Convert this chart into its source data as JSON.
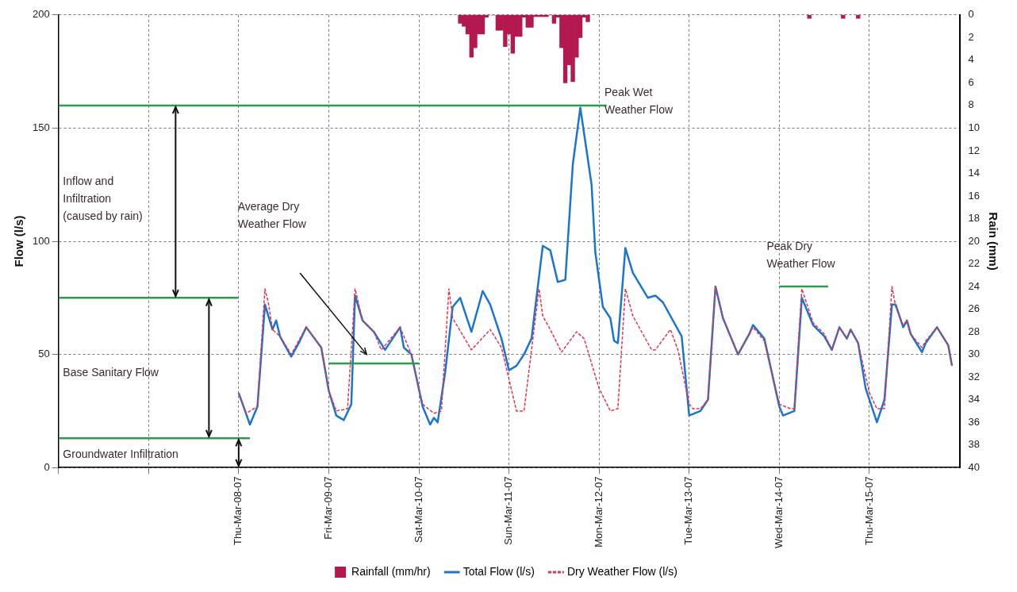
{
  "chart_data": {
    "type": "line",
    "ylabel": "Flow (l/s)",
    "y2label": "Rain (mm)",
    "xlim": [
      "--03-06",
      "--03-16"
    ],
    "xticks": [
      {
        "value": "--03-06",
        "label": null
      },
      {
        "value": "--03-07",
        "label": null
      },
      {
        "value": "--03-08",
        "label": "Thu-Mar-08-07"
      },
      {
        "value": "--03-09",
        "label": "Fri-Mar-09-07"
      },
      {
        "value": "--03-10",
        "label": "Sat-Mar-10-07"
      },
      {
        "value": "--03-11",
        "label": "Sun-Mar-11-07"
      },
      {
        "value": "--03-12",
        "label": "Mon-Mar-12-07"
      },
      {
        "value": "--03-13",
        "label": "Tue-Mar-13-07"
      },
      {
        "value": "--03-14",
        "label": "Wed-Mar-14-07"
      },
      {
        "value": "--03-15",
        "label": "Thu-Mar-15-07"
      }
    ],
    "ylim": [
      0,
      200
    ],
    "yticks": [
      0,
      50,
      100,
      150,
      200
    ],
    "y2lim": [
      40,
      0
    ],
    "y2ticks": [
      0,
      2,
      4,
      6,
      8,
      10,
      12,
      14,
      16,
      18,
      20,
      22,
      24,
      26,
      28,
      30,
      32,
      34,
      36,
      38,
      40
    ],
    "grid": true,
    "legend": "bottom",
    "marker": "none",
    "series": [
      {
        "name": "Rainfall (mm/hr)",
        "type": "bar",
        "axis": "y2",
        "color": "#b3194e",
        "x": [
          "--03-10T11:00",
          "--03-10T12:00",
          "--03-10T13:00",
          "--03-10T14:00",
          "--03-10T15:00",
          "--03-10T16:00",
          "--03-10T17:00",
          "--03-10T18:00",
          "--03-10T19:00",
          "--03-10T20:00",
          "--03-10T21:00",
          "--03-10T22:00",
          "--03-10T23:00",
          "--03-11T00:00",
          "--03-11T01:00",
          "--03-11T02:00",
          "--03-11T03:00",
          "--03-11T04:00",
          "--03-11T05:00",
          "--03-11T06:00",
          "--03-11T07:00",
          "--03-11T08:00",
          "--03-11T09:00",
          "--03-11T10:00",
          "--03-11T11:00",
          "--03-11T12:00",
          "--03-11T13:00",
          "--03-11T14:00",
          "--03-11T15:00",
          "--03-11T16:00",
          "--03-11T17:00",
          "--03-11T18:00",
          "--03-11T19:00",
          "--03-11T20:00",
          "--03-11T21:00",
          "--03-14T08:00",
          "--03-14T17:00",
          "--03-14T21:00"
        ],
        "values": [
          0.75,
          1,
          1.7,
          3.75,
          2.9,
          1.7,
          1.7,
          0.2,
          0,
          0,
          1.35,
          1.35,
          2.8,
          1.7,
          3.4,
          1.9,
          1.9,
          0.2,
          1.1,
          1.1,
          0.15,
          0.15,
          0.15,
          0.15,
          0,
          0.75,
          0.2,
          2.9,
          6,
          4.4,
          5.9,
          3.75,
          2,
          0.2,
          0.6,
          0.3,
          0.3,
          0.3
        ]
      },
      {
        "name": "Total Flow (l/s)",
        "color": "#1b75d0",
        "line_style": "solid",
        "x": [
          "--03-08T00:00",
          "--03-08T03:00",
          "--03-08T05:00",
          "--03-08T07:00",
          "--03-08T09:00",
          "--03-08T10:00",
          "--03-08T11:00",
          "--03-08T14:00",
          "--03-08T16:00",
          "--03-08T18:00",
          "--03-08T22:00",
          "--03-09T00:00",
          "--03-09T02:00",
          "--03-09T04:00",
          "--03-09T06:00",
          "--03-09T07:00",
          "--03-09T09:00",
          "--03-09T12:00",
          "--03-09T15:00",
          "--03-09T19:00",
          "--03-09T20:00",
          "--03-09T22:00",
          "--03-10T01:00",
          "--03-10T03:00",
          "--03-10T04:00",
          "--03-10T05:00",
          "--03-10T07:00",
          "--03-10T09:00",
          "--03-10T11:00",
          "--03-10T14:00",
          "--03-10T17:00",
          "--03-10T19:00",
          "--03-10T22:00",
          "--03-11T00:00",
          "--03-11T02:00",
          "--03-11T04:00",
          "--03-11T06:00",
          "--03-11T09:00",
          "--03-11T11:00",
          "--03-11T13:00",
          "--03-11T15:00",
          "--03-11T17:00",
          "--03-11T19:00",
          "--03-11T22:00",
          "--03-11T23:00",
          "--03-12T01:00",
          "--03-12T03:00",
          "--03-12T04:00",
          "--03-12T05:00",
          "--03-12T07:00",
          "--03-12T09:00",
          "--03-12T13:00",
          "--03-12T15:00",
          "--03-12T17:00",
          "--03-12T22:00",
          "--03-13T00:00",
          "--03-13T03:00",
          "--03-13T05:00",
          "--03-13T07:00",
          "--03-13T09:00",
          "--03-13T13:00",
          "--03-13T16:00",
          "--03-13T17:00",
          "--03-13T20:00",
          "--03-14T00:00",
          "--03-14T01:00",
          "--03-14T04:00",
          "--03-14T06:00",
          "--03-14T09:00",
          "--03-14T12:00",
          "--03-14T14:00",
          "--03-14T16:00",
          "--03-14T18:00",
          "--03-14T19:00",
          "--03-14T21:00",
          "--03-14T23:00",
          "--03-15T00:00",
          "--03-15T02:00",
          "--03-15T04:00",
          "--03-15T06:00",
          "--03-15T07:00",
          "--03-15T09:00",
          "--03-15T10:00",
          "--03-15T11:00",
          "--03-15T14:00",
          "--03-15T15:00",
          "--03-15T18:00",
          "--03-15T21:00",
          "--03-15T22:00"
        ],
        "values": [
          33,
          19,
          27,
          72,
          61,
          65,
          58,
          49,
          55,
          62,
          53,
          34,
          23,
          21,
          28,
          76,
          65,
          60,
          52,
          62,
          53,
          50,
          27,
          19,
          22,
          20,
          42,
          71,
          75,
          60,
          78,
          72,
          57,
          43,
          45,
          50,
          57,
          98,
          96,
          82,
          83,
          134,
          159,
          125,
          95,
          71,
          66,
          56,
          55,
          97,
          86,
          75,
          76,
          73,
          58,
          23,
          25,
          30,
          80,
          66,
          50,
          59,
          63,
          57,
          27,
          23,
          25,
          75,
          63,
          58,
          52,
          62,
          57,
          61,
          55,
          35,
          30,
          20,
          30,
          72,
          72,
          62,
          65,
          59,
          51,
          55,
          62,
          54,
          45
        ]
      },
      {
        "name": "Dry Weather Flow (l/s)",
        "color": "#e8334a",
        "line_style": "dashed",
        "x": [
          "--03-08T00:00",
          "--03-08T02:00",
          "--03-08T05:00",
          "--03-08T07:00",
          "--03-08T08:00",
          "--03-08T09:00",
          "--03-08T11:00",
          "--03-08T14:00",
          "--03-08T18:00",
          "--03-08T22:00",
          "--03-09T00:00",
          "--03-09T02:00",
          "--03-09T05:00",
          "--03-09T07:00",
          "--03-09T09:00",
          "--03-09T12:00",
          "--03-09T14:00",
          "--03-09T19:00",
          "--03-09T22:00",
          "--03-10T01:00",
          "--03-10T04:00",
          "--03-10T06:00",
          "--03-10T08:00",
          "--03-10T09:00",
          "--03-10T14:00",
          "--03-10T19:00",
          "--03-10T22:00",
          "--03-11T02:00",
          "--03-11T04:00",
          "--03-11T08:00",
          "--03-11T09:00",
          "--03-11T11:00",
          "--03-11T14:00",
          "--03-11T18:00",
          "--03-11T20:00",
          "--03-12T00:00",
          "--03-12T03:00",
          "--03-12T05:00",
          "--03-12T07:00",
          "--03-12T09:00",
          "--03-12T14:00",
          "--03-12T15:00",
          "--03-12T19:00",
          "--03-12T21:00",
          "--03-13T00:00",
          "--03-13T01:00",
          "--03-13T03:00",
          "--03-13T05:00",
          "--03-13T07:00",
          "--03-13T09:00",
          "--03-13T13:00",
          "--03-13T17:00",
          "--03-13T20:00",
          "--03-14T00:00",
          "--03-14T03:00",
          "--03-14T04:00",
          "--03-14T06:00",
          "--03-14T09:00",
          "--03-14T12:00",
          "--03-14T14:00",
          "--03-14T16:00",
          "--03-14T18:00",
          "--03-14T19:00",
          "--03-14T21:00",
          "--03-15T00:00",
          "--03-15T02:00",
          "--03-15T04:00",
          "--03-15T06:00",
          "--03-15T07:00",
          "--03-15T09:00",
          "--03-15T10:00",
          "--03-15T11:00",
          "--03-15T14:00",
          "--03-15T15:00",
          "--03-15T18:00",
          "--03-15T21:00",
          "--03-15T22:00"
        ],
        "values": [
          33,
          24,
          27,
          79,
          72,
          61,
          58,
          50,
          62,
          53,
          34,
          25,
          26,
          79,
          65,
          60,
          52,
          62,
          50,
          28,
          24,
          25,
          79,
          66,
          52,
          61,
          53,
          25,
          25,
          79,
          67,
          61,
          51,
          60,
          57,
          35,
          25,
          26,
          79,
          67,
          52,
          52,
          61,
          52,
          28,
          26,
          26,
          30,
          80,
          66,
          50,
          62,
          56,
          28,
          26,
          26,
          79,
          64,
          59,
          52,
          62,
          57,
          61,
          55,
          33,
          26,
          26,
          80,
          71,
          63,
          65,
          59,
          53,
          56,
          62,
          54,
          45
        ]
      },
      {
        "color": "#2e9a4e",
        "x": [
          "--03-06T00:00",
          "--03-12T02:00"
        ],
        "values": [
          160,
          160
        ]
      },
      {
        "color": "#2e9a4e",
        "x": [
          "--03-06T00:00",
          "--03-08T00:00"
        ],
        "values": [
          75,
          75
        ]
      },
      {
        "color": "#2e9a4e",
        "x": [
          "--03-06T00:00",
          "--03-08T03:00"
        ],
        "values": [
          13,
          13
        ]
      },
      {
        "color": "#2e9a4e",
        "x": [
          "--03-09T00:00",
          "--03-10T00:00"
        ],
        "values": [
          46,
          46
        ]
      },
      {
        "color": "#2e9a4e",
        "x": [
          "--03-14T00:00",
          "--03-14T13:00"
        ],
        "values": [
          80,
          80
        ]
      }
    ],
    "annotations": [
      "Inflow and\nInfiltration\n(caused by rain)",
      "Base Sanitary Flow",
      "Groundwater Infiltration",
      "Average Dry\nWeather Flow",
      "Peak Wet\nWeather Flow",
      "Peak Dry\nWeather Flow"
    ]
  }
}
